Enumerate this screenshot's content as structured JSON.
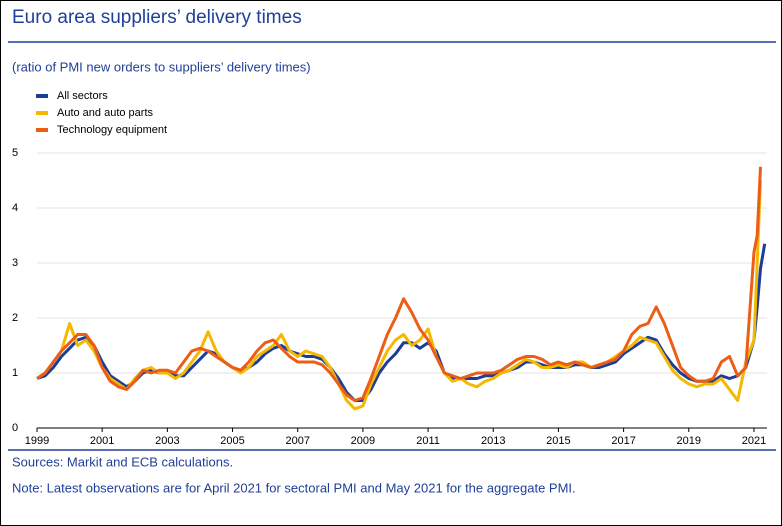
{
  "chart_data": {
    "type": "line",
    "title": "Euro area suppliers’ delivery times",
    "subtitle": "(ratio of PMI new orders to suppliers’ delivery times)",
    "source": "Sources: Markit and ECB calculations.",
    "note": "Note: Latest observations are for April 2021 for sectoral PMI and May 2021 for the aggregate PMI.",
    "xlim": [
      1999,
      2021.4
    ],
    "xticks": [
      1999,
      2001,
      2003,
      2005,
      2007,
      2009,
      2011,
      2013,
      2015,
      2017,
      2019,
      2021
    ],
    "ylim": [
      0,
      5
    ],
    "yticks": [
      0,
      1,
      2,
      3,
      4,
      5
    ],
    "grid": true,
    "legend": "top-left",
    "x": [
      1999,
      1999.25,
      1999.5,
      1999.75,
      2000,
      2000.25,
      2000.5,
      2000.75,
      2001,
      2001.25,
      2001.5,
      2001.75,
      2002,
      2002.25,
      2002.5,
      2002.75,
      2003,
      2003.25,
      2003.5,
      2003.75,
      2004,
      2004.25,
      2004.5,
      2004.75,
      2005,
      2005.25,
      2005.5,
      2005.75,
      2006,
      2006.25,
      2006.5,
      2006.75,
      2007,
      2007.25,
      2007.5,
      2007.75,
      2008,
      2008.25,
      2008.5,
      2008.75,
      2009,
      2009.25,
      2009.5,
      2009.75,
      2010,
      2010.25,
      2010.5,
      2010.75,
      2011,
      2011.25,
      2011.5,
      2011.75,
      2012,
      2012.25,
      2012.5,
      2012.75,
      2013,
      2013.25,
      2013.5,
      2013.75,
      2014,
      2014.25,
      2014.5,
      2014.75,
      2015,
      2015.25,
      2015.5,
      2015.75,
      2016,
      2016.25,
      2016.5,
      2016.75,
      2017,
      2017.25,
      2017.5,
      2017.75,
      2018,
      2018.25,
      2018.5,
      2018.75,
      2019,
      2019.25,
      2019.5,
      2019.75,
      2020,
      2020.25,
      2020.5,
      2020.75,
      2021,
      2021.1,
      2021.2,
      2021.33
    ],
    "series": [
      {
        "name": "All sectors",
        "color": "#1a3d99",
        "values": [
          0.9,
          0.95,
          1.1,
          1.3,
          1.45,
          1.6,
          1.65,
          1.5,
          1.2,
          0.95,
          0.85,
          0.75,
          0.85,
          1.0,
          1.05,
          1.0,
          1.0,
          0.95,
          0.95,
          1.1,
          1.25,
          1.4,
          1.35,
          1.2,
          1.1,
          1.05,
          1.1,
          1.2,
          1.35,
          1.45,
          1.5,
          1.4,
          1.35,
          1.3,
          1.3,
          1.25,
          1.1,
          0.9,
          0.65,
          0.5,
          0.5,
          0.7,
          1.0,
          1.2,
          1.35,
          1.55,
          1.55,
          1.45,
          1.55,
          1.4,
          1.0,
          0.9,
          0.9,
          0.9,
          0.9,
          0.95,
          0.95,
          1.0,
          1.05,
          1.1,
          1.2,
          1.2,
          1.15,
          1.1,
          1.1,
          1.1,
          1.15,
          1.15,
          1.1,
          1.1,
          1.15,
          1.2,
          1.35,
          1.45,
          1.55,
          1.65,
          1.6,
          1.35,
          1.15,
          1.0,
          0.9,
          0.85,
          0.85,
          0.85,
          0.95,
          0.9,
          0.95,
          1.1,
          1.6,
          2.2,
          2.9,
          3.35
        ]
      },
      {
        "name": "Auto and auto parts",
        "color": "#f5b800",
        "values": [
          0.9,
          1.0,
          1.2,
          1.4,
          1.9,
          1.5,
          1.6,
          1.4,
          1.1,
          0.9,
          0.8,
          0.7,
          0.9,
          1.05,
          1.1,
          1.0,
          1.0,
          0.9,
          1.0,
          1.2,
          1.4,
          1.75,
          1.4,
          1.2,
          1.1,
          1.0,
          1.1,
          1.3,
          1.4,
          1.5,
          1.7,
          1.4,
          1.3,
          1.4,
          1.35,
          1.3,
          1.1,
          0.8,
          0.5,
          0.35,
          0.4,
          0.8,
          1.1,
          1.4,
          1.6,
          1.7,
          1.5,
          1.6,
          1.8,
          1.3,
          1.0,
          0.85,
          0.9,
          0.8,
          0.75,
          0.85,
          0.9,
          1.0,
          1.05,
          1.15,
          1.25,
          1.2,
          1.1,
          1.1,
          1.15,
          1.1,
          1.2,
          1.2,
          1.1,
          1.15,
          1.2,
          1.3,
          1.4,
          1.5,
          1.65,
          1.6,
          1.55,
          1.3,
          1.05,
          0.9,
          0.8,
          0.75,
          0.8,
          0.8,
          0.9,
          0.7,
          0.5,
          1.2,
          1.6,
          3.0,
          4.5,
          null
        ]
      },
      {
        "name": "Technology equipment",
        "color": "#ec5d16",
        "values": [
          0.9,
          1.0,
          1.2,
          1.4,
          1.55,
          1.7,
          1.7,
          1.5,
          1.1,
          0.85,
          0.75,
          0.7,
          0.85,
          1.05,
          1.0,
          1.05,
          1.05,
          1.0,
          1.2,
          1.4,
          1.45,
          1.4,
          1.3,
          1.2,
          1.1,
          1.05,
          1.2,
          1.4,
          1.55,
          1.6,
          1.45,
          1.3,
          1.2,
          1.2,
          1.2,
          1.15,
          1.0,
          0.8,
          0.6,
          0.5,
          0.55,
          0.9,
          1.3,
          1.7,
          2.0,
          2.35,
          2.1,
          1.8,
          1.6,
          1.3,
          1.0,
          0.95,
          0.9,
          0.95,
          1.0,
          1.0,
          1.0,
          1.05,
          1.15,
          1.25,
          1.3,
          1.3,
          1.25,
          1.15,
          1.2,
          1.15,
          1.2,
          1.15,
          1.1,
          1.15,
          1.2,
          1.25,
          1.4,
          1.7,
          1.85,
          1.9,
          2.2,
          1.9,
          1.5,
          1.1,
          0.95,
          0.85,
          0.85,
          0.9,
          1.2,
          1.3,
          0.95,
          1.1,
          3.2,
          3.5,
          4.75,
          null
        ]
      }
    ]
  }
}
